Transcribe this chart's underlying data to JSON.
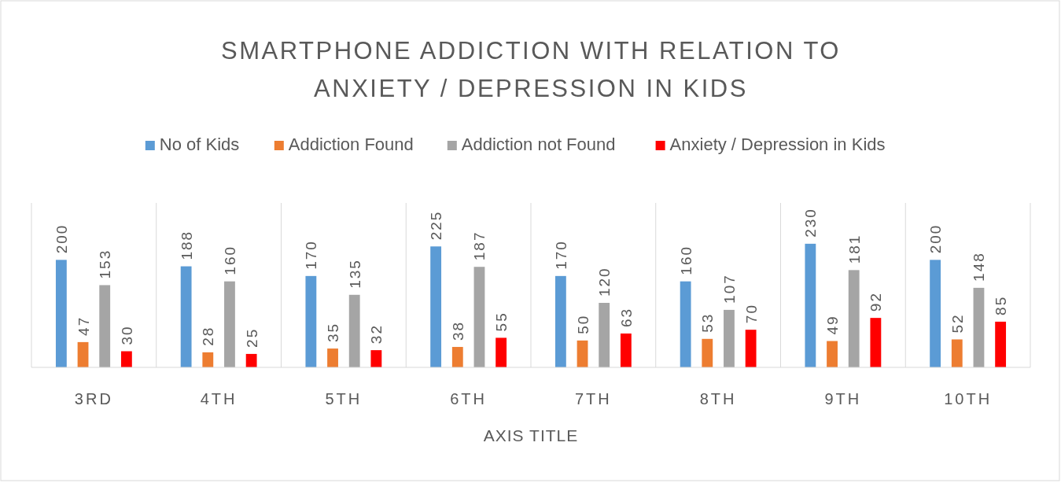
{
  "chart_data": {
    "type": "bar",
    "title": "SMARTPHONE ADDICTION WITH RELATION TO ANXIETY / DEPRESSION IN KIDS",
    "xlabel": "AXIS TITLE",
    "categories": [
      "3RD",
      "4TH",
      "5TH",
      "6TH",
      "7TH",
      "8TH",
      "9TH",
      "10TH"
    ],
    "series": [
      {
        "name": "No of Kids",
        "color": "#5b9bd5",
        "values": [
          200,
          188,
          170,
          225,
          170,
          160,
          230,
          200
        ]
      },
      {
        "name": "Addiction Found",
        "color": "#ed7d31",
        "values": [
          47,
          28,
          35,
          38,
          50,
          53,
          49,
          52
        ]
      },
      {
        "name": "Addiction not Found",
        "color": "#a5a5a5",
        "values": [
          153,
          160,
          135,
          187,
          120,
          107,
          181,
          148
        ]
      },
      {
        "name": "Anxiety / Depression in Kids",
        "color": "#ff0000",
        "values": [
          30,
          25,
          32,
          55,
          63,
          70,
          92,
          85
        ]
      }
    ],
    "data_labels": true,
    "grid": "x",
    "legend": "top",
    "tick_labels": "x"
  }
}
